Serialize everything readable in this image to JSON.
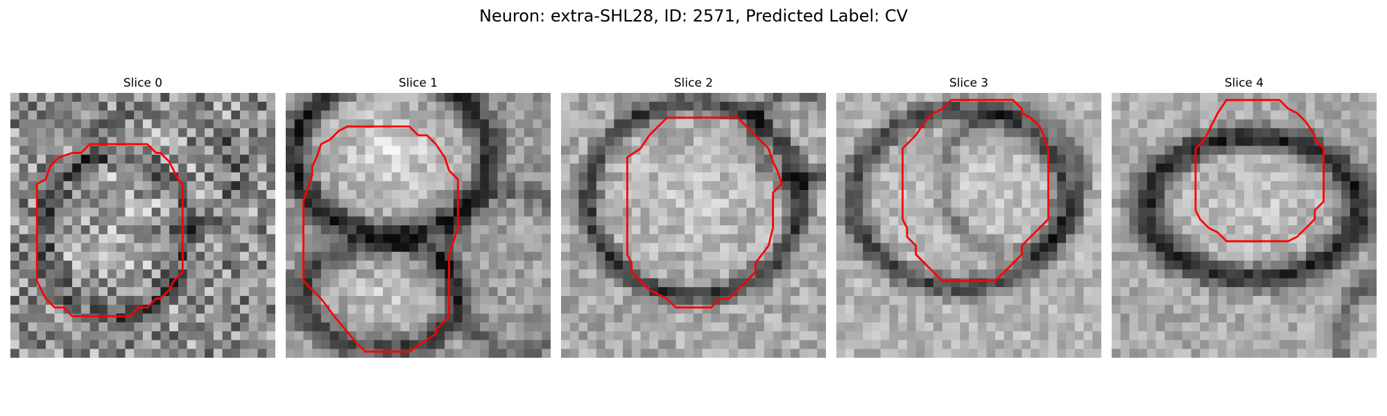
{
  "figure": {
    "title": "Neuron: extra-SHL28, ID: 2571, Predicted Label: CV"
  },
  "colors": {
    "contour": "#ff0000",
    "background": "#ffffff"
  },
  "slices": [
    {
      "label": "Slice 0",
      "index": 0
    },
    {
      "label": "Slice 1",
      "index": 1
    },
    {
      "label": "Slice 2",
      "index": 2
    },
    {
      "label": "Slice 3",
      "index": 3
    },
    {
      "label": "Slice 4",
      "index": 4
    }
  ]
}
